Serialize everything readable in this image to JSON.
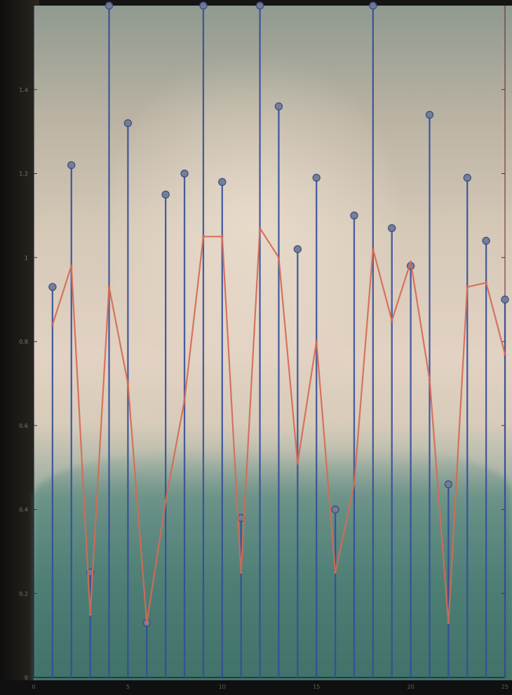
{
  "chart_data": {
    "type": "line",
    "title": "",
    "xlabel": "",
    "ylabel": "",
    "xlim": [
      0,
      25
    ],
    "ylim": [
      0,
      1.6
    ],
    "grid": false,
    "x_ticks": [
      {
        "value": 0,
        "label": "0"
      },
      {
        "value": 5,
        "label": "5"
      },
      {
        "value": 10,
        "label": "10"
      },
      {
        "value": 15,
        "label": "15"
      },
      {
        "value": 20,
        "label": "20"
      },
      {
        "value": 25,
        "label": "25"
      }
    ],
    "y_ticks": [
      {
        "value": 0,
        "label": "0"
      },
      {
        "value": 0.2,
        "label": "0.2"
      },
      {
        "value": 0.4,
        "label": "0.4"
      },
      {
        "value": 0.6,
        "label": "0.6"
      },
      {
        "value": 0.8,
        "label": "0.8"
      },
      {
        "value": 1,
        "label": "1"
      },
      {
        "value": 1.2,
        "label": "1.2"
      },
      {
        "value": 1.4,
        "label": "1.4"
      }
    ],
    "x": [
      1,
      2,
      3,
      4,
      5,
      6,
      7,
      8,
      9,
      10,
      11,
      12,
      13,
      14,
      15,
      16,
      17,
      18,
      19,
      20,
      21,
      22,
      23,
      24,
      25
    ],
    "series": [
      {
        "kind": "stem",
        "color": "#334d9a",
        "values": [
          0.93,
          1.22,
          0.25,
          1.6,
          1.32,
          0.13,
          1.15,
          1.2,
          1.6,
          1.18,
          0.38,
          1.6,
          1.36,
          1.02,
          1.19,
          0.4,
          1.1,
          1.6,
          1.07,
          0.98,
          1.34,
          0.46,
          1.19,
          1.04,
          0.9
        ]
      },
      {
        "kind": "line",
        "color": "#d56a55",
        "values": [
          0.84,
          0.98,
          0.15,
          0.93,
          0.7,
          0.13,
          0.42,
          0.66,
          1.05,
          1.05,
          0.25,
          1.07,
          1.0,
          0.51,
          0.8,
          0.25,
          0.46,
          1.02,
          0.85,
          0.99,
          0.71,
          0.13,
          0.93,
          0.94,
          0.77
        ]
      }
    ]
  }
}
